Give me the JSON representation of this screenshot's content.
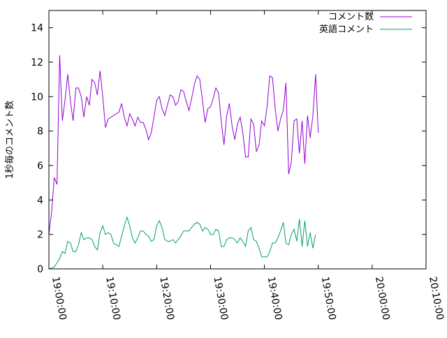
{
  "chart_data": {
    "type": "line",
    "title": "",
    "xlabel": "",
    "ylabel": "1秒毎のコメント数",
    "xlim": [
      "19:00:00",
      "20:10:00"
    ],
    "ylim": [
      0,
      15
    ],
    "x_ticks": [
      "19:00:00",
      "19:10:00",
      "19:20:00",
      "19:30:00",
      "19:40:00",
      "19:50:00",
      "20:00:00",
      "20:10:00"
    ],
    "y_ticks": [
      "0",
      "2",
      "4",
      "6",
      "8",
      "10",
      "12",
      "14"
    ],
    "grid": false,
    "legend_position": "top-right",
    "series": [
      {
        "name": "コメント数",
        "color": "#9400d3",
        "points": [
          [
            "19:00:00",
            2.0
          ],
          [
            "19:00:30",
            3.3
          ],
          [
            "19:01:00",
            5.3
          ],
          [
            "19:01:30",
            4.9
          ],
          [
            "19:02:00",
            12.4
          ],
          [
            "19:02:30",
            8.6
          ],
          [
            "19:03:00",
            9.8
          ],
          [
            "19:03:30",
            11.3
          ],
          [
            "19:04:00",
            9.7
          ],
          [
            "19:04:30",
            8.6
          ],
          [
            "19:05:00",
            10.5
          ],
          [
            "19:05:30",
            10.5
          ],
          [
            "19:06:00",
            10.0
          ],
          [
            "19:06:30",
            8.8
          ],
          [
            "19:07:00",
            10.0
          ],
          [
            "19:07:30",
            9.5
          ],
          [
            "19:08:00",
            11.0
          ],
          [
            "19:08:30",
            10.8
          ],
          [
            "19:09:00",
            10.1
          ],
          [
            "19:09:30",
            11.5
          ],
          [
            "19:10:00",
            10.0
          ],
          [
            "19:10:30",
            8.2
          ],
          [
            "19:11:00",
            8.7
          ],
          [
            "19:12:00",
            8.9
          ],
          [
            "19:13:00",
            9.1
          ],
          [
            "19:13:30",
            9.6
          ],
          [
            "19:14:00",
            8.8
          ],
          [
            "19:14:30",
            8.3
          ],
          [
            "19:15:00",
            9.0
          ],
          [
            "19:15:30",
            8.7
          ],
          [
            "19:16:00",
            8.3
          ],
          [
            "19:16:30",
            8.8
          ],
          [
            "19:17:00",
            8.5
          ],
          [
            "19:17:30",
            8.5
          ],
          [
            "19:18:00",
            8.1
          ],
          [
            "19:18:30",
            7.5
          ],
          [
            "19:19:00",
            7.9
          ],
          [
            "19:19:30",
            8.8
          ],
          [
            "19:20:00",
            9.8
          ],
          [
            "19:20:30",
            10.0
          ],
          [
            "19:21:00",
            9.3
          ],
          [
            "19:21:30",
            8.9
          ],
          [
            "19:22:00",
            9.5
          ],
          [
            "19:22:30",
            10.1
          ],
          [
            "19:23:00",
            10.0
          ],
          [
            "19:23:30",
            9.5
          ],
          [
            "19:24:00",
            9.7
          ],
          [
            "19:24:30",
            10.4
          ],
          [
            "19:25:00",
            10.3
          ],
          [
            "19:25:30",
            9.7
          ],
          [
            "19:26:00",
            9.2
          ],
          [
            "19:26:30",
            9.9
          ],
          [
            "19:27:00",
            10.7
          ],
          [
            "19:27:30",
            11.2
          ],
          [
            "19:28:00",
            11.0
          ],
          [
            "19:28:30",
            9.8
          ],
          [
            "19:29:00",
            8.5
          ],
          [
            "19:29:30",
            9.3
          ],
          [
            "19:30:00",
            9.4
          ],
          [
            "19:30:30",
            9.9
          ],
          [
            "19:31:00",
            10.5
          ],
          [
            "19:31:30",
            10.2
          ],
          [
            "19:32:00",
            8.5
          ],
          [
            "19:32:30",
            7.2
          ],
          [
            "19:33:00",
            8.9
          ],
          [
            "19:33:30",
            9.6
          ],
          [
            "19:34:00",
            8.3
          ],
          [
            "19:34:30",
            7.5
          ],
          [
            "19:35:00",
            8.4
          ],
          [
            "19:35:30",
            8.8
          ],
          [
            "19:36:00",
            7.9
          ],
          [
            "19:36:30",
            6.5
          ],
          [
            "19:37:00",
            6.5
          ],
          [
            "19:37:30",
            8.7
          ],
          [
            "19:38:00",
            8.4
          ],
          [
            "19:38:30",
            6.8
          ],
          [
            "19:39:00",
            7.2
          ],
          [
            "19:39:30",
            8.6
          ],
          [
            "19:40:00",
            8.3
          ],
          [
            "19:40:30",
            9.4
          ],
          [
            "19:41:00",
            11.2
          ],
          [
            "19:41:30",
            11.1
          ],
          [
            "19:42:00",
            9.3
          ],
          [
            "19:42:30",
            8.0
          ],
          [
            "19:43:00",
            8.7
          ],
          [
            "19:43:30",
            9.2
          ],
          [
            "19:44:00",
            10.8
          ],
          [
            "19:44:30",
            5.5
          ],
          [
            "19:45:00",
            6.2
          ],
          [
            "19:45:30",
            8.6
          ],
          [
            "19:46:00",
            8.7
          ],
          [
            "19:46:30",
            6.7
          ],
          [
            "19:47:00",
            8.6
          ],
          [
            "19:47:30",
            6.1
          ],
          [
            "19:48:00",
            8.9
          ],
          [
            "19:48:30",
            7.6
          ],
          [
            "19:49:00",
            8.9
          ],
          [
            "19:49:30",
            11.3
          ],
          [
            "19:50:00",
            7.9
          ]
        ]
      },
      {
        "name": "英語コメント",
        "color": "#009e73",
        "points": [
          [
            "19:00:00",
            0.0
          ],
          [
            "19:01:00",
            0.1
          ],
          [
            "19:02:00",
            0.6
          ],
          [
            "19:02:30",
            1.0
          ],
          [
            "19:03:00",
            0.9
          ],
          [
            "19:03:30",
            1.6
          ],
          [
            "19:04:00",
            1.5
          ],
          [
            "19:04:30",
            1.0
          ],
          [
            "19:05:00",
            1.0
          ],
          [
            "19:05:30",
            1.4
          ],
          [
            "19:06:00",
            2.1
          ],
          [
            "19:06:30",
            1.7
          ],
          [
            "19:07:00",
            1.8
          ],
          [
            "19:07:30",
            1.8
          ],
          [
            "19:08:00",
            1.7
          ],
          [
            "19:08:30",
            1.3
          ],
          [
            "19:09:00",
            1.1
          ],
          [
            "19:09:30",
            2.1
          ],
          [
            "19:10:00",
            2.5
          ],
          [
            "19:10:30",
            2.0
          ],
          [
            "19:11:00",
            2.1
          ],
          [
            "19:11:30",
            2.0
          ],
          [
            "19:12:00",
            1.5
          ],
          [
            "19:13:00",
            1.3
          ],
          [
            "19:13:30",
            1.9
          ],
          [
            "19:14:00",
            2.5
          ],
          [
            "19:14:30",
            3.0
          ],
          [
            "19:15:00",
            2.5
          ],
          [
            "19:15:30",
            1.8
          ],
          [
            "19:16:00",
            1.5
          ],
          [
            "19:16:30",
            1.8
          ],
          [
            "19:17:00",
            2.2
          ],
          [
            "19:17:30",
            2.2
          ],
          [
            "19:18:00",
            2.0
          ],
          [
            "19:18:30",
            1.9
          ],
          [
            "19:19:00",
            1.6
          ],
          [
            "19:19:30",
            1.7
          ],
          [
            "19:20:00",
            2.5
          ],
          [
            "19:20:30",
            2.8
          ],
          [
            "19:21:00",
            2.4
          ],
          [
            "19:21:30",
            1.7
          ],
          [
            "19:22:00",
            1.6
          ],
          [
            "19:22:30",
            1.6
          ],
          [
            "19:23:00",
            1.7
          ],
          [
            "19:23:30",
            1.5
          ],
          [
            "19:24:00",
            1.7
          ],
          [
            "19:24:30",
            1.9
          ],
          [
            "19:25:00",
            2.2
          ],
          [
            "19:25:30",
            2.2
          ],
          [
            "19:26:00",
            2.2
          ],
          [
            "19:26:30",
            2.4
          ],
          [
            "19:27:00",
            2.6
          ],
          [
            "19:27:30",
            2.7
          ],
          [
            "19:28:00",
            2.6
          ],
          [
            "19:28:30",
            2.2
          ],
          [
            "19:29:00",
            2.4
          ],
          [
            "19:29:30",
            2.3
          ],
          [
            "19:30:00",
            2.0
          ],
          [
            "19:30:30",
            2.0
          ],
          [
            "19:31:00",
            2.3
          ],
          [
            "19:31:30",
            2.2
          ],
          [
            "19:32:00",
            1.3
          ],
          [
            "19:32:30",
            1.3
          ],
          [
            "19:33:00",
            1.7
          ],
          [
            "19:33:30",
            1.8
          ],
          [
            "19:34:00",
            1.8
          ],
          [
            "19:34:30",
            1.7
          ],
          [
            "19:35:00",
            1.5
          ],
          [
            "19:35:30",
            1.8
          ],
          [
            "19:36:00",
            1.6
          ],
          [
            "19:36:30",
            1.3
          ],
          [
            "19:37:00",
            2.2
          ],
          [
            "19:37:30",
            2.4
          ],
          [
            "19:38:00",
            1.7
          ],
          [
            "19:38:30",
            1.6
          ],
          [
            "19:39:00",
            1.2
          ],
          [
            "19:39:30",
            0.7
          ],
          [
            "19:40:00",
            0.7
          ],
          [
            "19:40:30",
            0.7
          ],
          [
            "19:41:00",
            1.0
          ],
          [
            "19:41:30",
            1.5
          ],
          [
            "19:42:00",
            1.5
          ],
          [
            "19:42:30",
            1.8
          ],
          [
            "19:43:00",
            2.2
          ],
          [
            "19:43:30",
            2.7
          ],
          [
            "19:44:00",
            1.5
          ],
          [
            "19:44:30",
            1.4
          ],
          [
            "19:45:00",
            2.0
          ],
          [
            "19:45:30",
            2.3
          ],
          [
            "19:46:00",
            1.6
          ],
          [
            "19:46:30",
            2.9
          ],
          [
            "19:47:00",
            1.3
          ],
          [
            "19:47:30",
            2.8
          ],
          [
            "19:48:00",
            1.3
          ],
          [
            "19:48:30",
            2.1
          ],
          [
            "19:49:00",
            1.2
          ],
          [
            "19:49:30",
            2.0
          ]
        ]
      }
    ]
  }
}
